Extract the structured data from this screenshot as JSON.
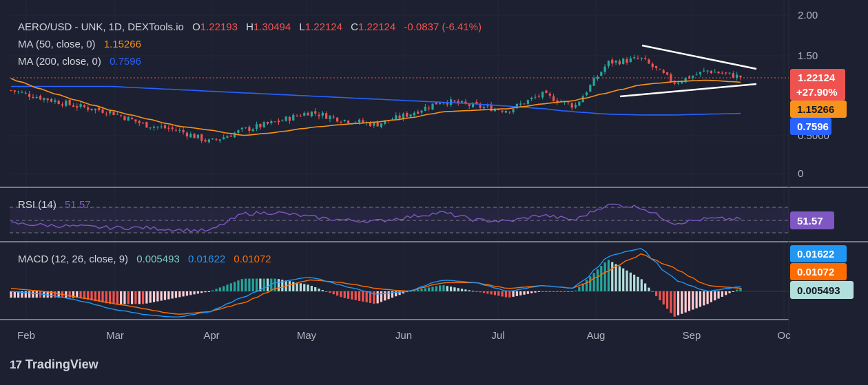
{
  "header": {
    "symbol": "AERO/USD - UNK, 1D, DEXTools.io",
    "o_label": "O",
    "o_value": "1.22193",
    "h_label": "H",
    "h_value": "1.30494",
    "l_label": "L",
    "l_value": "1.22124",
    "c_label": "C",
    "c_value": "1.22124",
    "change": "-0.0837 (-6.41%)"
  },
  "ma50": {
    "label": "MA (50, close, 0)",
    "value": "1.15266"
  },
  "ma200": {
    "label": "MA (200, close, 0)",
    "value": "0.7596"
  },
  "rsi": {
    "label": "RSI (14)",
    "value": "51.57"
  },
  "macd": {
    "label": "MACD (12, 26, close, 9)",
    "hist": "0.005493",
    "macd": "0.01622",
    "signal": "0.01072"
  },
  "badges": {
    "price": "1.22124",
    "change_pct": "+27.90%",
    "ma50": "1.15266",
    "ma200": "0.7596",
    "rsi": "51.57",
    "macd": "0.01622",
    "signal": "0.01072",
    "hist": "0.005493"
  },
  "brand": {
    "name": "TradingView",
    "logo": "17"
  },
  "colors": {
    "up": "#26a69a",
    "down": "#ef5350",
    "ma50": "#f7931a",
    "ma200": "#2962ff",
    "rsi": "#7e57c2",
    "macd": "#2196f3",
    "signal": "#ff6d00",
    "trendline": "#ffffff"
  },
  "chart_data": {
    "type": "candlestick",
    "x_ticks": [
      "Feb",
      "Mar",
      "Apr",
      "May",
      "Jun",
      "Jul",
      "Aug",
      "Sep",
      "Oc"
    ],
    "y_ticks": [
      "2.00",
      "1.50",
      "0.5000",
      "0"
    ],
    "ylim": [
      0,
      2.0
    ],
    "price_series": [
      {
        "month": "Feb-start",
        "close": 1.05
      },
      {
        "month": "Feb",
        "close": 0.95
      },
      {
        "month": "Feb-mid",
        "close": 0.85
      },
      {
        "month": "Mar",
        "close": 0.78
      },
      {
        "month": "Mar-mid",
        "close": 0.62
      },
      {
        "month": "Apr",
        "close": 0.55
      },
      {
        "month": "Apr-mid",
        "close": 0.4
      },
      {
        "month": "Apr-end",
        "close": 0.55
      },
      {
        "month": "May",
        "close": 0.65
      },
      {
        "month": "May-mid",
        "close": 0.78
      },
      {
        "month": "May-end",
        "close": 0.68
      },
      {
        "month": "Jun",
        "close": 0.62
      },
      {
        "month": "Jun-mid",
        "close": 0.75
      },
      {
        "month": "Jun-end",
        "close": 0.92
      },
      {
        "month": "Jul",
        "close": 0.85
      },
      {
        "month": "Jul-mid",
        "close": 0.8
      },
      {
        "month": "Jul-end",
        "close": 1.0
      },
      {
        "month": "Aug",
        "close": 0.85
      },
      {
        "month": "Aug-mid",
        "close": 1.4
      },
      {
        "month": "Aug-end",
        "close": 1.45
      },
      {
        "month": "Sep",
        "close": 1.15
      },
      {
        "month": "Sep-mid",
        "close": 1.3
      },
      {
        "month": "Sep-last",
        "close": 1.22124
      }
    ],
    "ma50_series": [
      1.2,
      1.05,
      0.92,
      0.8,
      0.7,
      0.6,
      0.55,
      0.48,
      0.52,
      0.58,
      0.62,
      0.65,
      0.7,
      0.78,
      0.8,
      0.82,
      0.88,
      0.92,
      1.02,
      1.12,
      1.16,
      1.18,
      1.15266
    ],
    "ma200_series": [
      1.1,
      1.1,
      1.1,
      1.1,
      1.08,
      1.06,
      1.04,
      1.02,
      1.0,
      0.98,
      0.96,
      0.94,
      0.92,
      0.9,
      0.88,
      0.85,
      0.82,
      0.78,
      0.75,
      0.74,
      0.74,
      0.75,
      0.7596
    ],
    "rsi_series": [
      45,
      42,
      40,
      38,
      38,
      35,
      33,
      60,
      62,
      55,
      50,
      48,
      55,
      62,
      50,
      48,
      58,
      50,
      75,
      70,
      45,
      52,
      51.57
    ],
    "rsi_bands": [
      30,
      50,
      70
    ],
    "macd_series": [
      0.0,
      -0.01,
      -0.03,
      -0.06,
      -0.08,
      -0.09,
      -0.07,
      -0.02,
      0.03,
      0.05,
      0.02,
      -0.01,
      0.0,
      0.04,
      0.03,
      0.0,
      0.02,
      0.01,
      0.12,
      0.15,
      0.04,
      0.0,
      0.01622
    ],
    "signal_series": [
      0.01,
      0.0,
      -0.02,
      -0.04,
      -0.06,
      -0.08,
      -0.07,
      -0.04,
      0.01,
      0.04,
      0.03,
      0.01,
      0.0,
      0.03,
      0.03,
      0.01,
      0.02,
      0.01,
      0.07,
      0.13,
      0.08,
      0.02,
      0.01072
    ],
    "hist_last": 0.005493
  }
}
